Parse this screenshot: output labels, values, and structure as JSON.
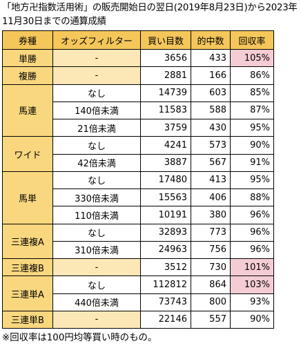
{
  "title": "「地方卍指数活用術」の販売開始日の翌日(2019年8月23日)から2023年11月30日までの通算成績",
  "headers": [
    "券種",
    "オッズフィルター",
    "買い目数",
    "的中数",
    "回収率"
  ],
  "groups": [
    {
      "type": "単勝",
      "rows": [
        {
          "filter": "-",
          "bets": "3656",
          "hits": "433",
          "return": "105%",
          "highlight": true
        }
      ]
    },
    {
      "type": "複勝",
      "rows": [
        {
          "filter": "-",
          "bets": "2881",
          "hits": "166",
          "return": "86%",
          "highlight": false
        }
      ]
    },
    {
      "type": "馬連",
      "rows": [
        {
          "filter": "なし",
          "bets": "14739",
          "hits": "603",
          "return": "85%",
          "highlight": false
        },
        {
          "filter": "140倍未満",
          "bets": "11583",
          "hits": "588",
          "return": "87%",
          "highlight": false
        },
        {
          "filter": "21倍未満",
          "bets": "3759",
          "hits": "430",
          "return": "95%",
          "highlight": false
        }
      ]
    },
    {
      "type": "ワイド",
      "rows": [
        {
          "filter": "なし",
          "bets": "4241",
          "hits": "573",
          "return": "90%",
          "highlight": false
        },
        {
          "filter": "42倍未満",
          "bets": "3887",
          "hits": "567",
          "return": "91%",
          "highlight": false
        }
      ]
    },
    {
      "type": "馬単",
      "rows": [
        {
          "filter": "なし",
          "bets": "17480",
          "hits": "413",
          "return": "95%",
          "highlight": false
        },
        {
          "filter": "330倍未満",
          "bets": "15563",
          "hits": "406",
          "return": "88%",
          "highlight": false
        },
        {
          "filter": "110倍未満",
          "bets": "10191",
          "hits": "380",
          "return": "96%",
          "highlight": false
        }
      ]
    },
    {
      "type": "三連複A",
      "rows": [
        {
          "filter": "なし",
          "bets": "32893",
          "hits": "773",
          "return": "96%",
          "highlight": false
        },
        {
          "filter": "310倍未満",
          "bets": "24963",
          "hits": "756",
          "return": "96%",
          "highlight": false
        }
      ]
    },
    {
      "type": "三連複B",
      "rows": [
        {
          "filter": "-",
          "bets": "3512",
          "hits": "730",
          "return": "101%",
          "highlight": true
        }
      ]
    },
    {
      "type": "三連単A",
      "rows": [
        {
          "filter": "なし",
          "bets": "112812",
          "hits": "864",
          "return": "103%",
          "highlight": true
        },
        {
          "filter": "440倍未満",
          "bets": "73743",
          "hits": "800",
          "return": "93%",
          "highlight": false
        }
      ]
    },
    {
      "type": "三連単B",
      "rows": [
        {
          "filter": "-",
          "bets": "22146",
          "hits": "557",
          "return": "90%",
          "highlight": false
        }
      ]
    }
  ],
  "note": "※回収率は100円均等買い時のもの。",
  "colors": {
    "header_bg": "#f5c65a",
    "type_bg": "#f9d77f",
    "dash_bg": "#fce7b6",
    "highlight_bg": "#f4ccd3"
  }
}
